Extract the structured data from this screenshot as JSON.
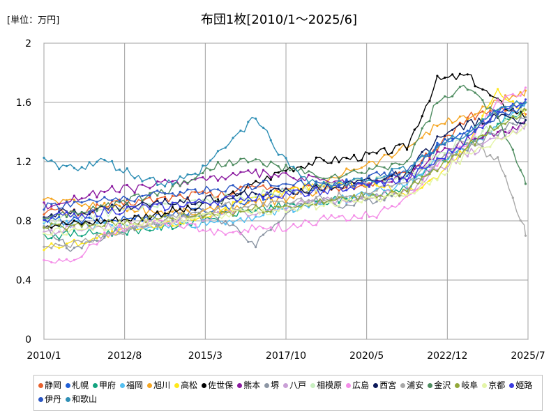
{
  "unit_label": "[単位：万円]",
  "chart_data": {
    "type": "line",
    "title": "布団1枚[2010/1～2025/6]",
    "xlabel": "",
    "ylabel": "",
    "ylim": [
      0,
      2
    ],
    "yticks": [
      "0",
      "0.4",
      "0.8",
      "1.2",
      "1.6",
      "2"
    ],
    "xticks": [
      "2010/1",
      "2012/8",
      "2015/3",
      "2017/10",
      "2020/5",
      "2022/12",
      "2025/7"
    ],
    "grid": true,
    "legend_position": "bottom",
    "series": [
      {
        "name": "静岡",
        "color": "#e8602c",
        "values": [
          0.87,
          0.85,
          0.9,
          0.93,
          0.95,
          0.98,
          0.97,
          1.05,
          1.0,
          1.02,
          1.03,
          1.05,
          1.12,
          1.3,
          1.5,
          1.55,
          1.52
        ]
      },
      {
        "name": "札幌",
        "color": "#1f5fd6",
        "values": [
          0.8,
          0.8,
          0.8,
          0.82,
          0.84,
          0.86,
          0.9,
          0.95,
          1.0,
          1.02,
          1.05,
          1.07,
          1.1,
          1.3,
          1.4,
          1.55,
          1.6
        ]
      },
      {
        "name": "甲府",
        "color": "#12a37f",
        "values": [
          0.7,
          0.71,
          0.72,
          0.74,
          0.76,
          0.8,
          0.84,
          0.88,
          0.9,
          0.92,
          0.95,
          0.98,
          1.02,
          1.2,
          1.3,
          1.45,
          1.55
        ]
      },
      {
        "name": "福岡",
        "color": "#55c0f2",
        "values": [
          0.78,
          0.78,
          0.76,
          0.76,
          0.77,
          0.78,
          0.8,
          0.83,
          0.88,
          0.92,
          0.95,
          1.0,
          1.05,
          1.2,
          1.3,
          1.45,
          1.6
        ]
      },
      {
        "name": "旭川",
        "color": "#f5a623",
        "values": [
          0.95,
          0.92,
          0.9,
          0.88,
          0.86,
          0.86,
          0.88,
          0.92,
          0.95,
          1.0,
          1.15,
          1.2,
          1.3,
          1.45,
          1.5,
          1.6,
          1.68
        ]
      },
      {
        "name": "高松",
        "color": "#ffe81a",
        "values": [
          0.62,
          0.65,
          0.7,
          0.74,
          0.77,
          0.82,
          0.88,
          0.95,
          1.0,
          1.05,
          1.05,
          1.05,
          0.98,
          1.1,
          1.3,
          1.7,
          1.5
        ]
      },
      {
        "name": "佐世保",
        "color": "#000000",
        "values": [
          0.78,
          0.78,
          0.8,
          0.82,
          0.86,
          0.88,
          0.95,
          1.05,
          1.15,
          1.2,
          1.22,
          1.25,
          1.3,
          1.75,
          1.78,
          1.6,
          1.5
        ]
      },
      {
        "name": "熊本",
        "color": "#8b1aa0",
        "values": [
          0.9,
          0.95,
          1.0,
          1.02,
          1.05,
          1.08,
          1.1,
          1.12,
          1.1,
          1.08,
          1.05,
          1.05,
          1.1,
          1.25,
          1.35,
          1.4,
          1.45
        ]
      },
      {
        "name": "堺",
        "color": "#8c96a4",
        "values": [
          0.75,
          0.6,
          0.7,
          0.75,
          0.8,
          0.85,
          0.8,
          0.65,
          0.85,
          0.95,
          0.9,
          0.95,
          1.0,
          1.2,
          1.3,
          1.4,
          1.5
        ]
      },
      {
        "name": "八戸",
        "color": "#c9a0d6",
        "values": [
          0.72,
          0.74,
          0.76,
          0.78,
          0.8,
          0.82,
          0.84,
          0.86,
          0.9,
          0.92,
          0.95,
          0.98,
          1.0,
          1.15,
          1.25,
          1.35,
          1.45
        ]
      },
      {
        "name": "相模原",
        "color": "#c8efc0",
        "values": [
          0.8,
          0.82,
          0.85,
          0.88,
          0.9,
          0.92,
          0.95,
          0.98,
          1.0,
          1.02,
          1.05,
          1.08,
          1.1,
          1.25,
          1.35,
          1.45,
          1.55
        ]
      },
      {
        "name": "広島",
        "color": "#f48ee8",
        "values": [
          0.55,
          0.52,
          0.7,
          0.78,
          0.8,
          0.75,
          0.72,
          0.75,
          0.75,
          0.8,
          0.82,
          0.85,
          0.95,
          1.2,
          1.3,
          1.6,
          1.7
        ]
      },
      {
        "name": "西宮",
        "color": "#0d1a5a",
        "values": [
          0.85,
          0.86,
          0.88,
          0.9,
          0.92,
          0.94,
          0.96,
          0.98,
          1.0,
          1.02,
          1.05,
          1.08,
          1.12,
          1.35,
          1.45,
          1.5,
          1.48
        ]
      },
      {
        "name": "浦安",
        "color": "#a8a8a8",
        "values": [
          0.6,
          0.65,
          0.7,
          0.75,
          0.8,
          0.85,
          0.9,
          0.9,
          0.92,
          0.95,
          0.98,
          1.0,
          1.05,
          1.2,
          1.35,
          1.2,
          0.7
        ]
      },
      {
        "name": "金沢",
        "color": "#4e8c60",
        "values": [
          0.8,
          0.85,
          0.9,
          0.95,
          1.0,
          1.1,
          1.2,
          1.2,
          1.15,
          1.1,
          1.1,
          1.15,
          1.2,
          1.6,
          1.7,
          1.5,
          1.05
        ]
      },
      {
        "name": "岐阜",
        "color": "#93a83a",
        "values": [
          0.75,
          0.76,
          0.78,
          0.8,
          0.82,
          0.84,
          0.86,
          0.88,
          0.9,
          0.92,
          0.95,
          0.98,
          1.0,
          1.15,
          1.3,
          1.45,
          1.55
        ]
      },
      {
        "name": "京都",
        "color": "#e4f5a8",
        "values": [
          0.72,
          0.74,
          0.76,
          0.78,
          0.8,
          0.82,
          0.84,
          0.86,
          0.88,
          0.9,
          0.92,
          0.95,
          0.98,
          1.1,
          1.25,
          1.35,
          1.45
        ]
      },
      {
        "name": "姫路",
        "color": "#3b3be0",
        "values": [
          0.82,
          0.84,
          0.86,
          0.88,
          0.9,
          0.92,
          0.94,
          0.96,
          0.98,
          1.0,
          1.02,
          1.05,
          1.08,
          1.2,
          1.35,
          1.55,
          1.62
        ]
      },
      {
        "name": "伊丹",
        "color": "#2b57c4",
        "values": [
          0.9,
          0.92,
          0.94,
          0.96,
          0.98,
          1.0,
          1.02,
          1.04,
          1.06,
          1.05,
          1.05,
          1.1,
          1.15,
          1.3,
          1.4,
          1.5,
          1.6
        ]
      },
      {
        "name": "和歌山",
        "color": "#2f8fb5",
        "values": [
          1.2,
          1.15,
          1.2,
          1.1,
          1.05,
          1.1,
          1.3,
          1.5,
          1.2,
          1.05,
          1.05,
          1.1,
          1.15,
          1.3,
          1.4,
          1.55,
          1.6
        ]
      }
    ]
  }
}
